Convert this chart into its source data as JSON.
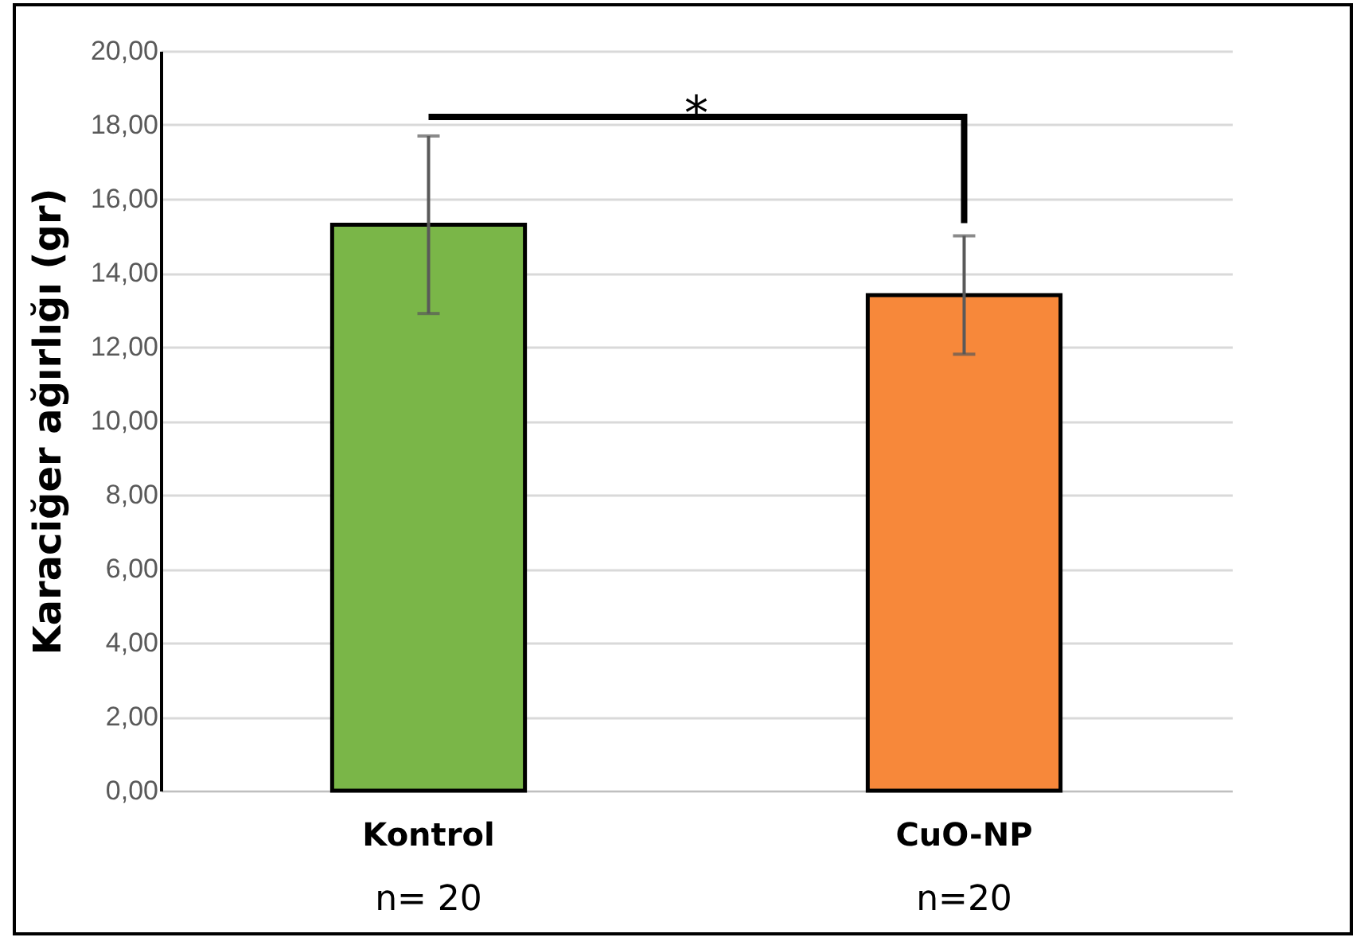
{
  "chart_data": {
    "type": "bar",
    "ylabel": "Karaciğer ağırlığı (gr)",
    "categories": [
      "Kontrol",
      "CuO-NP"
    ],
    "values": [
      15.3,
      13.4
    ],
    "colors": [
      "#7ab648",
      "#f7883a"
    ],
    "errors": [
      [
        12.9,
        17.7
      ],
      [
        11.8,
        15.0
      ]
    ],
    "ylim": [
      0,
      20
    ],
    "yticks": [
      {
        "value": 0,
        "label": "0,00"
      },
      {
        "value": 2,
        "label": "2,00"
      },
      {
        "value": 4,
        "label": "4,00"
      },
      {
        "value": 6,
        "label": "6,00"
      },
      {
        "value": 8,
        "label": "8,00"
      },
      {
        "value": 10,
        "label": "10,00"
      },
      {
        "value": 12,
        "label": "12,00"
      },
      {
        "value": 14,
        "label": "14,00"
      },
      {
        "value": 16,
        "label": "16,00"
      },
      {
        "value": 18,
        "label": "18,00"
      },
      {
        "value": 20,
        "label": "20,00"
      }
    ],
    "grid": "y",
    "annotations": [
      "*",
      "n= 20",
      "n=20"
    ]
  }
}
